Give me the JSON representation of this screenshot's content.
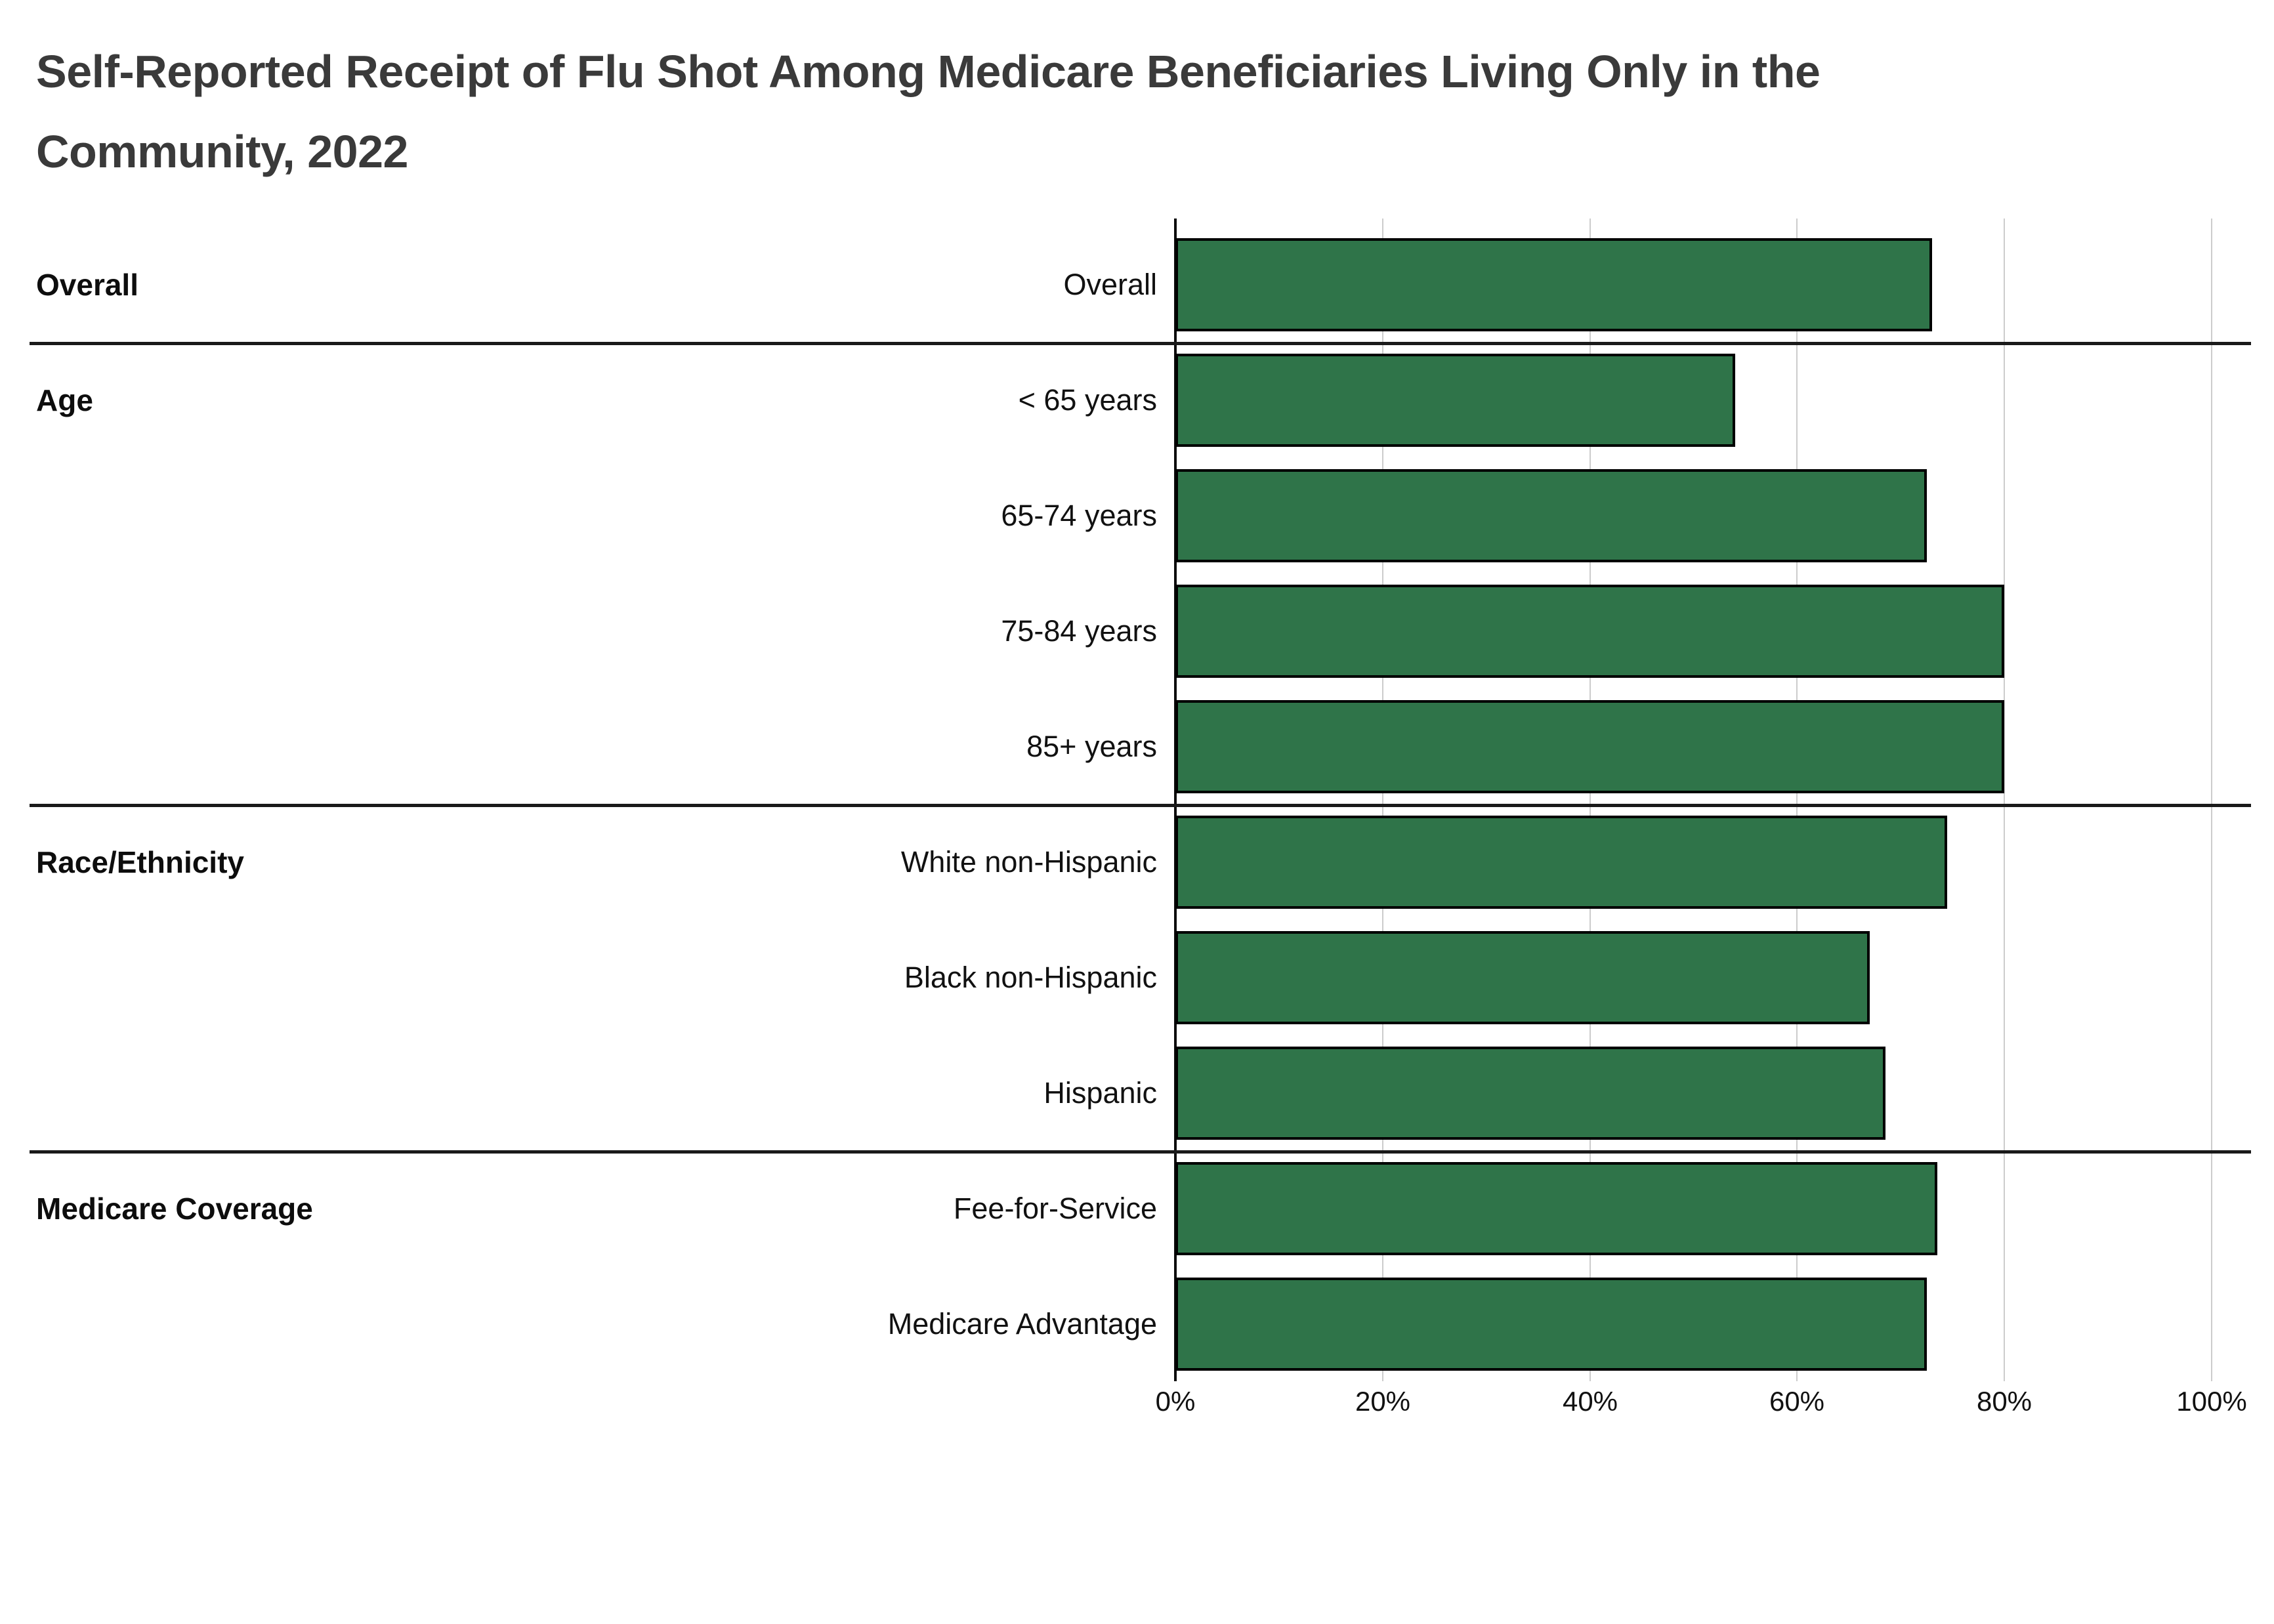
{
  "title": {
    "line1": "Self-Reported Receipt of Flu Shot Among Medicare Beneficiaries Living Only in the",
    "line2": "Community, 2022"
  },
  "chart_data": {
    "type": "bar",
    "orientation": "horizontal",
    "title": "Self-Reported Receipt of Flu Shot Among Medicare Beneficiaries Living Only in the Community, 2022",
    "unit": "percent",
    "xlim": [
      0,
      100
    ],
    "x_ticks": [
      "0%",
      "20%",
      "40%",
      "60%",
      "80%",
      "100%"
    ],
    "grid": "vertical-gridlines-on",
    "legend": "none",
    "bar_color": "#2f7449",
    "bar_border_color": "#000000",
    "gridline_color": "#cccccc",
    "separator_color": "#1a1a1a",
    "groups": [
      {
        "name": "Overall",
        "items": [
          {
            "label": "Overall",
            "value": 73
          }
        ]
      },
      {
        "name": "Age",
        "items": [
          {
            "label": "< 65 years",
            "value": 54
          },
          {
            "label": "65-74 years",
            "value": 72.5
          },
          {
            "label": "75-84 years",
            "value": 80
          },
          {
            "label": "85+ years",
            "value": 80
          }
        ]
      },
      {
        "name": "Race/Ethnicity",
        "items": [
          {
            "label": "White non-Hispanic",
            "value": 74.5
          },
          {
            "label": "Black non-Hispanic",
            "value": 67
          },
          {
            "label": "Hispanic",
            "value": 68.5
          }
        ]
      },
      {
        "name": "Medicare Coverage",
        "items": [
          {
            "label": "Fee-for-Service",
            "value": 73.5
          },
          {
            "label": "Medicare Advantage",
            "value": 72.5
          }
        ]
      }
    ]
  }
}
